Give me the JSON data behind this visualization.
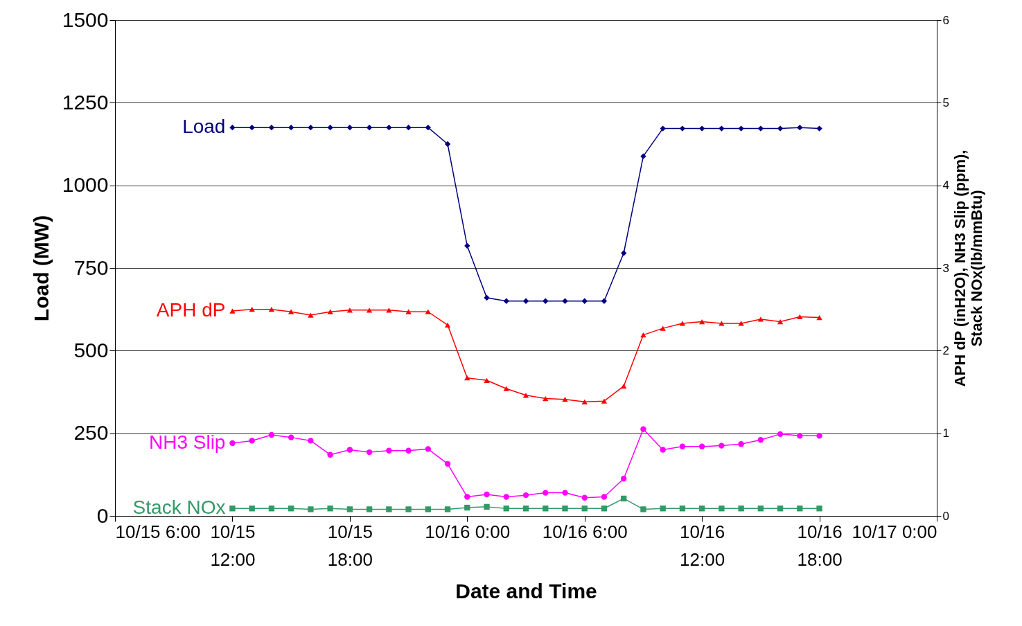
{
  "chart_data": {
    "type": "line",
    "xlabel": "Date and Time",
    "ylabel": "Load (MW)",
    "y2label": "APH dP (inH2O), NH3 Slip (ppm),\nStack NOx(lb/mmBtu)",
    "x": [
      "--10-15T12:00",
      "--10-15T13:00",
      "--10-15T14:00",
      "--10-15T15:00",
      "--10-15T16:00",
      "--10-15T17:00",
      "--10-15T18:00",
      "--10-15T19:00",
      "--10-15T20:00",
      "--10-15T21:00",
      "--10-15T22:00",
      "--10-15T23:00",
      "--10-16T00:00",
      "--10-16T01:00",
      "--10-16T02:00",
      "--10-16T03:00",
      "--10-16T04:00",
      "--10-16T05:00",
      "--10-16T06:00",
      "--10-16T07:00",
      "--10-16T08:00",
      "--10-16T09:00",
      "--10-16T10:00",
      "--10-16T11:00",
      "--10-16T12:00",
      "--10-16T13:00",
      "--10-16T14:00",
      "--10-16T15:00",
      "--10-16T16:00",
      "--10-16T17:00",
      "--10-16T18:00"
    ],
    "xlim": [
      "--10-15T06:00",
      "--10-17T00:00"
    ],
    "xticks": [
      {
        "value": "--10-15T06:00",
        "label": "10/15 6:00"
      },
      {
        "value": "--10-15T12:00",
        "label": "10/15\n12:00"
      },
      {
        "value": "--10-15T18:00",
        "label": "10/15\n18:00"
      },
      {
        "value": "--10-16T00:00",
        "label": "10/16 0:00"
      },
      {
        "value": "--10-16T06:00",
        "label": "10/16 6:00"
      },
      {
        "value": "--10-16T12:00",
        "label": "10/16\n12:00"
      },
      {
        "value": "--10-16T18:00",
        "label": "10/16\n18:00"
      },
      {
        "value": "--10-17T00:00",
        "label": "10/17 0:00"
      }
    ],
    "ylim": [
      0,
      1500
    ],
    "yticks": [
      0,
      250,
      500,
      750,
      1000,
      1250,
      1500
    ],
    "y2lim": [
      0,
      6
    ],
    "y2ticks": [
      0,
      1,
      2,
      3,
      4,
      5,
      6
    ],
    "grid": "y",
    "legend": false,
    "line_style": "solid",
    "series": [
      {
        "name": "Load",
        "color": "#000080",
        "marker": "diamond",
        "values": [
          1175,
          1175,
          1175,
          1175,
          1175,
          1175,
          1175,
          1175,
          1175,
          1175,
          1175,
          1125,
          817,
          660,
          650,
          650,
          650,
          650,
          650,
          650,
          795,
          1088,
          1172,
          1172,
          1172,
          1172,
          1172,
          1172,
          1172,
          1175,
          1172
        ]
      },
      {
        "name": "APH dP",
        "color": "#ff0000",
        "marker": "triangle",
        "axis": "y2",
        "values": [
          2.48,
          2.5,
          2.5,
          2.47,
          2.43,
          2.47,
          2.49,
          2.49,
          2.49,
          2.47,
          2.47,
          2.31,
          1.67,
          1.64,
          1.54,
          1.46,
          1.42,
          1.41,
          1.38,
          1.39,
          1.57,
          2.19,
          2.27,
          2.33,
          2.35,
          2.33,
          2.33,
          2.38,
          2.35,
          2.41,
          2.4
        ]
      },
      {
        "name": "NH3 Slip",
        "color": "#ff00ff",
        "marker": "circle",
        "axis": "y2",
        "values": [
          0.88,
          0.91,
          0.98,
          0.95,
          0.91,
          0.74,
          0.8,
          0.77,
          0.79,
          0.79,
          0.81,
          0.63,
          0.23,
          0.26,
          0.23,
          0.25,
          0.28,
          0.28,
          0.22,
          0.23,
          0.45,
          1.05,
          0.8,
          0.84,
          0.84,
          0.85,
          0.87,
          0.92,
          0.99,
          0.97,
          0.97
        ]
      },
      {
        "name": "Stack NOx",
        "color": "#339966",
        "marker": "square",
        "axis": "y2",
        "values": [
          0.09,
          0.09,
          0.09,
          0.09,
          0.08,
          0.09,
          0.08,
          0.08,
          0.08,
          0.08,
          0.08,
          0.08,
          0.1,
          0.11,
          0.09,
          0.09,
          0.09,
          0.09,
          0.09,
          0.09,
          0.21,
          0.08,
          0.09,
          0.09,
          0.09,
          0.09,
          0.09,
          0.09,
          0.09,
          0.09,
          0.09
        ]
      }
    ]
  }
}
